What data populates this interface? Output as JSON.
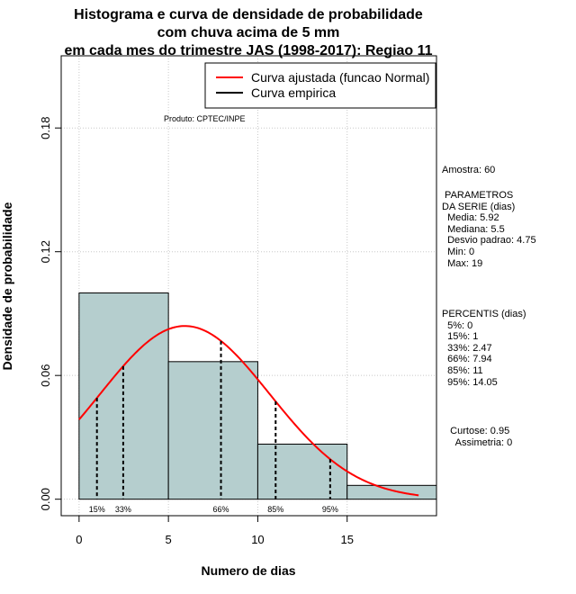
{
  "chart_data": {
    "type": "histogram",
    "title": [
      "Histograma e curva de densidade de probabilidade",
      "com chuva acima de 5 mm",
      "em cada mes do trimestre JAS (1998-2017): Regiao 11"
    ],
    "xlabel": "Numero de dias",
    "ylabel": "Densidade de probabilidade",
    "xlim": [
      -1,
      20
    ],
    "ylim": [
      -0.008,
      0.215
    ],
    "x_ticks": [
      0,
      5,
      10,
      15
    ],
    "y_ticks": [
      0.0,
      0.06,
      0.12,
      0.18
    ],
    "y_tick_labels": [
      "0.00",
      "0.06",
      "0.12",
      "0.18"
    ],
    "x_grid": [
      0,
      5,
      10,
      15
    ],
    "y_grid": [
      0.0,
      0.06,
      0.12,
      0.18
    ],
    "bins": [
      {
        "start": 0,
        "end": 5,
        "density": 0.1
      },
      {
        "start": 5,
        "end": 10,
        "density": 0.0667
      },
      {
        "start": 10,
        "end": 15,
        "density": 0.0267
      },
      {
        "start": 15,
        "end": 20,
        "density": 0.0067
      }
    ],
    "normal_curve": {
      "mean": 5.92,
      "sd": 4.75,
      "x_from": 0,
      "x_to": 19,
      "color": "#ff0000",
      "label": "Curva ajustada (funcao Normal)"
    },
    "empirical_curve": {
      "color": "#000000",
      "label": "Curva empirica"
    },
    "percentile_lines": [
      {
        "x": 1,
        "label": "15%"
      },
      {
        "x": 2.47,
        "label": "33%"
      },
      {
        "x": 7.94,
        "label": "66%"
      },
      {
        "x": 11,
        "label": "85%"
      },
      {
        "x": 14.05,
        "label": "95%"
      }
    ],
    "bar_color": "#b5cece",
    "product_note": "Produto: CPTEC/INPE"
  },
  "stats": {
    "sample": "Amostra: 60",
    "params_lines": [
      " PARAMETROS",
      "DA SERIE (dias)",
      "  Media: 5.92",
      "  Mediana: 5.5",
      "  Desvio padrao: 4.75",
      "  Min: 0",
      "  Max: 19"
    ],
    "percentis_lines": [
      "PERCENTIS (dias)",
      "  5%: 0",
      "  15%: 1",
      "  33%: 2.47",
      "  66%: 7.94",
      "  85%: 11",
      "  95%: 14.05"
    ],
    "shape_lines": [
      "   Curtose: 0.95",
      "     Assimetria: 0"
    ]
  }
}
